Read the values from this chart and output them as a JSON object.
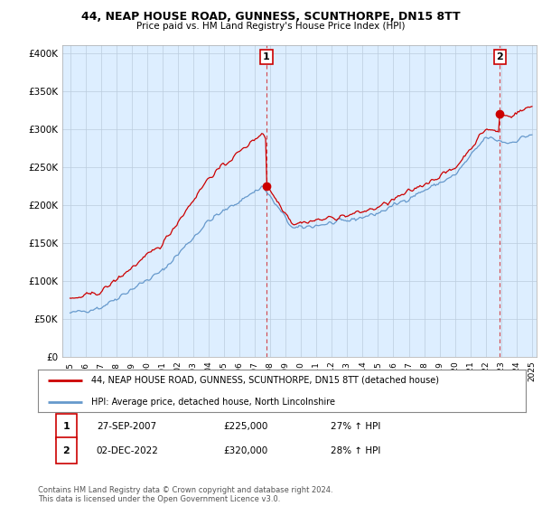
{
  "title": "44, NEAP HOUSE ROAD, GUNNESS, SCUNTHORPE, DN15 8TT",
  "subtitle": "Price paid vs. HM Land Registry's House Price Index (HPI)",
  "legend_line1": "44, NEAP HOUSE ROAD, GUNNESS, SCUNTHORPE, DN15 8TT (detached house)",
  "legend_line2": "HPI: Average price, detached house, North Lincolnshire",
  "annotation1_date": "27-SEP-2007",
  "annotation1_price": "£225,000",
  "annotation1_hpi": "27% ↑ HPI",
  "annotation2_date": "02-DEC-2022",
  "annotation2_price": "£320,000",
  "annotation2_hpi": "28% ↑ HPI",
  "footer": "Contains HM Land Registry data © Crown copyright and database right 2024.\nThis data is licensed under the Open Government Licence v3.0.",
  "sale_color": "#cc0000",
  "hpi_color": "#6699cc",
  "plot_bg_color": "#ddeeff",
  "vline_color": "#cc0000",
  "yticks": [
    0,
    50000,
    100000,
    150000,
    200000,
    250000,
    300000,
    350000,
    400000
  ],
  "background_color": "#ffffff",
  "sale1_year": 2007.75,
  "sale1_val": 225000,
  "sale2_year": 2022.917,
  "sale2_val": 320000
}
